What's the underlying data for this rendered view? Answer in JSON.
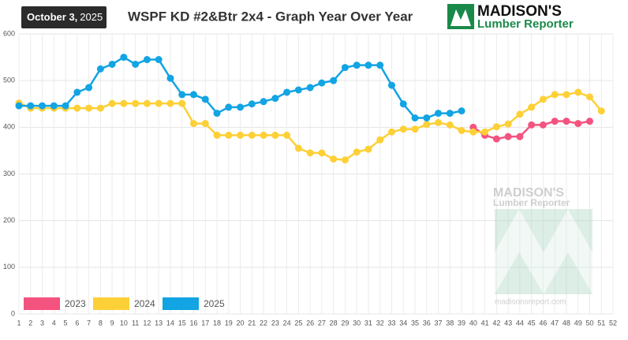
{
  "header": {
    "date": "October 3,",
    "date_year": "2025"
  },
  "logo": {
    "name": "MADISON'S",
    "subtitle": "Lumber Reporter"
  },
  "watermark": {
    "name": "MADISON'S",
    "subtitle": "Lumber Reporter",
    "url": "madisonsreport.com"
  },
  "chart_data": {
    "type": "line",
    "title": "WSPF KD #2&Btr 2x4 - Graph Year Over Year",
    "x": [
      1,
      2,
      3,
      4,
      5,
      6,
      7,
      8,
      9,
      10,
      11,
      12,
      13,
      14,
      15,
      16,
      17,
      18,
      19,
      20,
      21,
      22,
      23,
      24,
      25,
      26,
      27,
      28,
      29,
      30,
      31,
      32,
      33,
      34,
      35,
      36,
      37,
      38,
      39,
      40,
      41,
      42,
      43,
      44,
      45,
      46,
      47,
      48,
      49,
      50,
      51,
      52
    ],
    "xlim": [
      1,
      52
    ],
    "xticks": [
      1,
      2,
      3,
      4,
      5,
      6,
      7,
      8,
      9,
      10,
      11,
      12,
      13,
      14,
      15,
      16,
      17,
      18,
      19,
      20,
      21,
      22,
      23,
      24,
      25,
      26,
      27,
      28,
      29,
      30,
      31,
      32,
      33,
      34,
      35,
      36,
      37,
      38,
      39,
      40,
      41,
      42,
      43,
      44,
      45,
      46,
      47,
      48,
      49,
      50,
      51,
      52
    ],
    "ylim": [
      0,
      600
    ],
    "yticks": [
      0,
      100,
      200,
      300,
      400,
      500,
      600
    ],
    "grid": true,
    "series": [
      {
        "name": "2023",
        "color": "#f4537f",
        "values": [
          null,
          null,
          null,
          null,
          null,
          null,
          null,
          null,
          null,
          null,
          null,
          null,
          null,
          null,
          null,
          null,
          null,
          null,
          null,
          null,
          null,
          null,
          null,
          null,
          null,
          null,
          null,
          null,
          null,
          null,
          null,
          null,
          null,
          null,
          null,
          null,
          null,
          null,
          null,
          400,
          383,
          375,
          380,
          380,
          405,
          405,
          413,
          413,
          408,
          413,
          null,
          null
        ]
      },
      {
        "name": "2024",
        "color": "#fdd037",
        "values": [
          452,
          441,
          441,
          441,
          441,
          441,
          441,
          441,
          451,
          451,
          451,
          451,
          451,
          451,
          451,
          408,
          408,
          383,
          383,
          383,
          383,
          383,
          383,
          383,
          355,
          345,
          345,
          332,
          330,
          347,
          353,
          373,
          390,
          396,
          396,
          406,
          410,
          405,
          393,
          390,
          390,
          401,
          407,
          428,
          443,
          460,
          470,
          470,
          475,
          465,
          435,
          null
        ]
      },
      {
        "name": "2025",
        "color": "#12a4e3",
        "values": [
          446,
          446,
          446,
          446,
          446,
          475,
          485,
          525,
          535,
          550,
          535,
          545,
          545,
          505,
          470,
          470,
          460,
          430,
          443,
          443,
          450,
          455,
          462,
          475,
          480,
          485,
          495,
          500,
          528,
          533,
          533,
          533,
          490,
          450,
          420,
          420,
          430,
          430,
          435,
          null,
          null,
          null,
          null,
          null,
          null,
          null,
          null,
          null,
          null,
          null,
          null,
          null
        ]
      }
    ]
  }
}
